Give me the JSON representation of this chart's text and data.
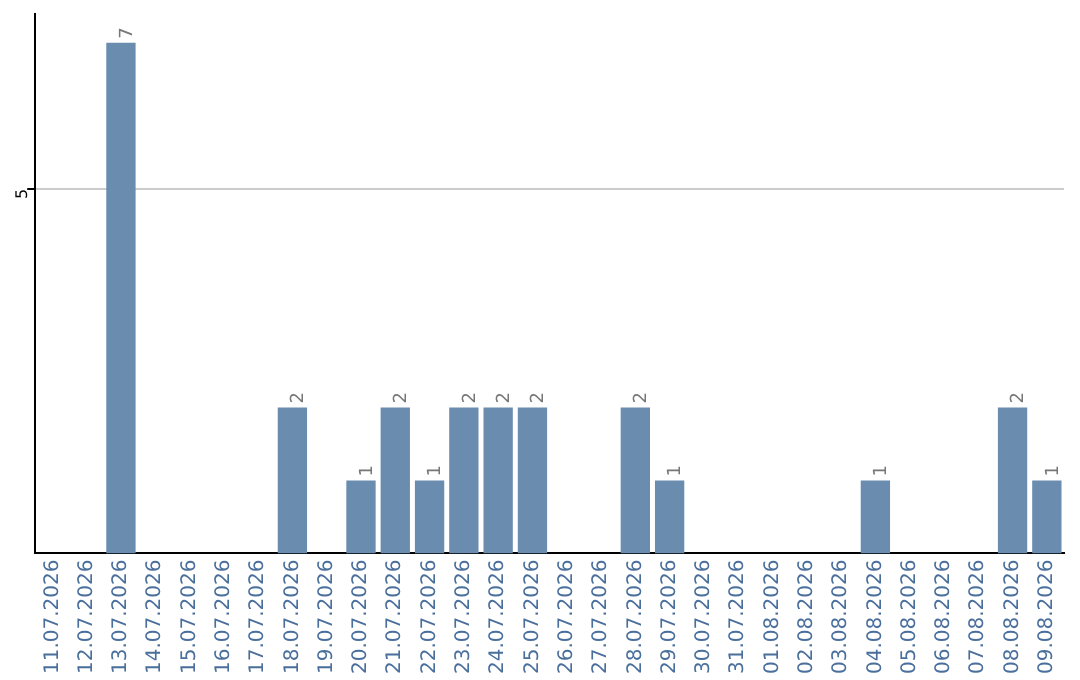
{
  "chart_data": {
    "type": "bar",
    "categories": [
      "11.07.2026",
      "12.07.2026",
      "13.07.2026",
      "14.07.2026",
      "15.07.2026",
      "16.07.2026",
      "17.07.2026",
      "18.07.2026",
      "19.07.2026",
      "20.07.2026",
      "21.07.2026",
      "22.07.2026",
      "23.07.2026",
      "24.07.2026",
      "25.07.2026",
      "26.07.2026",
      "27.07.2026",
      "28.07.2026",
      "29.07.2026",
      "30.07.2026",
      "31.07.2026",
      "01.08.2026",
      "02.08.2026",
      "03.08.2026",
      "04.08.2026",
      "05.08.2026",
      "06.08.2026",
      "07.08.2026",
      "08.08.2026",
      "09.08.2026"
    ],
    "values": [
      0,
      0,
      7,
      0,
      0,
      0,
      0,
      2,
      0,
      1,
      2,
      1,
      2,
      2,
      2,
      0,
      0,
      2,
      1,
      0,
      0,
      0,
      0,
      0,
      1,
      0,
      0,
      0,
      2,
      1
    ],
    "value_labels": [
      null,
      null,
      "7",
      null,
      null,
      null,
      null,
      "2",
      null,
      "1",
      "2",
      "1",
      "2",
      "2",
      "2",
      null,
      null,
      "2",
      "1",
      null,
      null,
      null,
      null,
      null,
      "1",
      null,
      null,
      null,
      "2",
      "1"
    ],
    "color": "#6a8caf",
    "ylim": [
      0,
      7.4
    ],
    "yticks": [
      5
    ],
    "grid": "y",
    "legend": false
  }
}
